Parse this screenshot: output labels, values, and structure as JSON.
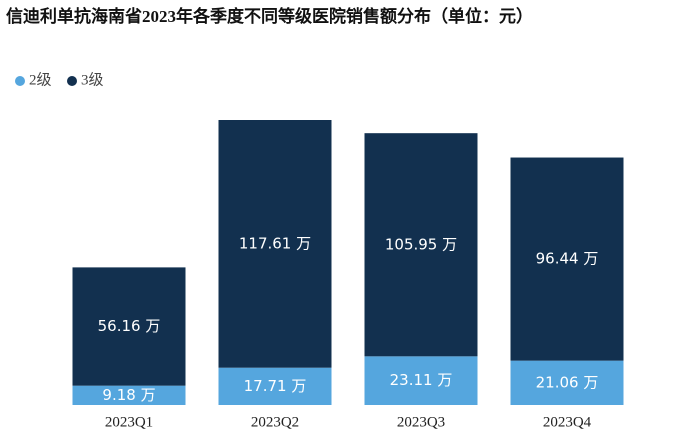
{
  "chart_data": {
    "type": "stacked_bar",
    "title": "信迪利单抗海南省2023年各季度不同等级医院销售额分布（单位：元）",
    "categories": [
      "2023Q1",
      "2023Q2",
      "2023Q3",
      "2023Q4"
    ],
    "series": [
      {
        "name": "2级",
        "color": "#55a6de",
        "values": [
          9.18,
          17.71,
          23.11,
          21.06
        ],
        "value_labels": [
          "9.18 万",
          "17.71 万",
          "23.11 万",
          "21.06 万"
        ]
      },
      {
        "name": "3级",
        "color": "#12304f",
        "values": [
          56.16,
          117.61,
          105.95,
          96.44
        ],
        "value_labels": [
          "56.16 万",
          "117.61 万",
          "105.95 万",
          "96.44 万"
        ]
      }
    ],
    "legend": "top-left"
  }
}
